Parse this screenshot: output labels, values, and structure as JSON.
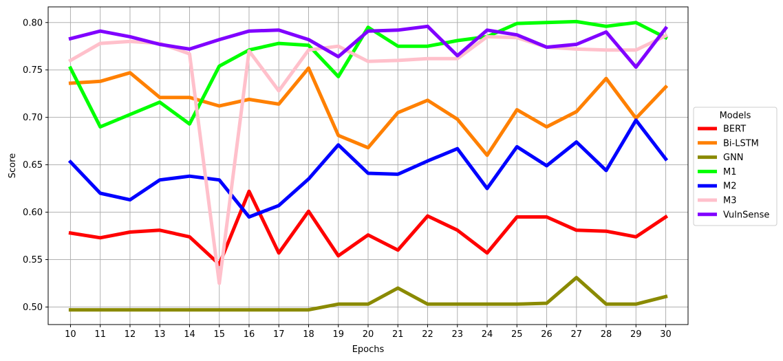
{
  "chart_data": {
    "type": "line",
    "title": "",
    "xlabel": "Epochs",
    "ylabel": "Score",
    "x": [
      10,
      11,
      12,
      13,
      14,
      15,
      16,
      17,
      18,
      19,
      20,
      21,
      22,
      23,
      24,
      25,
      26,
      27,
      28,
      29,
      30
    ],
    "x_tick_labels": [
      "10",
      "11",
      "12",
      "13",
      "14",
      "15",
      "16",
      "17",
      "18",
      "19",
      "20",
      "21",
      "22",
      "23",
      "24",
      "25",
      "26",
      "27",
      "28",
      "29",
      "30"
    ],
    "yticks": [
      0.5,
      0.55,
      0.6,
      0.65,
      0.7,
      0.75,
      0.8
    ],
    "y_tick_labels": [
      "0.50",
      "0.55",
      "0.60",
      "0.65",
      "0.70",
      "0.75",
      "0.80"
    ],
    "xlim": [
      9.25,
      30.75
    ],
    "ylim": [
      0.4815,
      0.8165
    ],
    "grid": true,
    "legend": {
      "title": "Models",
      "position": "right"
    },
    "series": [
      {
        "name": "BERT",
        "color": "#ff0000",
        "values": [
          0.578,
          0.573,
          0.579,
          0.581,
          0.574,
          0.545,
          0.622,
          0.557,
          0.601,
          0.554,
          0.576,
          0.56,
          0.596,
          0.581,
          0.557,
          0.595,
          0.595,
          0.581,
          0.58,
          0.574,
          0.595
        ]
      },
      {
        "name": "Bi-LSTM",
        "color": "#ff8000",
        "values": [
          0.736,
          0.738,
          0.747,
          0.721,
          0.721,
          0.712,
          0.719,
          0.714,
          0.752,
          0.681,
          0.668,
          0.705,
          0.718,
          0.698,
          0.66,
          0.708,
          0.69,
          0.706,
          0.741,
          0.699,
          0.732
        ]
      },
      {
        "name": "GNN",
        "color": "#8a8a00",
        "values": [
          0.497,
          0.497,
          0.497,
          0.497,
          0.497,
          0.497,
          0.497,
          0.497,
          0.497,
          0.503,
          0.503,
          0.52,
          0.503,
          0.503,
          0.503,
          0.503,
          0.504,
          0.531,
          0.503,
          0.503,
          0.511
        ]
      },
      {
        "name": "M1",
        "color": "#00ff00",
        "values": [
          0.752,
          0.69,
          0.703,
          0.716,
          0.693,
          0.754,
          0.771,
          0.778,
          0.776,
          0.743,
          0.795,
          0.775,
          0.775,
          0.781,
          0.785,
          0.799,
          0.8,
          0.801,
          0.796,
          0.8,
          0.784
        ]
      },
      {
        "name": "M2",
        "color": "#0000ff",
        "values": [
          0.653,
          0.62,
          0.613,
          0.634,
          0.638,
          0.634,
          0.595,
          0.607,
          0.635,
          0.671,
          0.641,
          0.64,
          0.654,
          0.667,
          0.625,
          0.669,
          0.649,
          0.674,
          0.644,
          0.697,
          0.656
        ]
      },
      {
        "name": "M3",
        "color": "#ffc0cb",
        "values": [
          0.76,
          0.778,
          0.78,
          0.778,
          0.767,
          0.525,
          0.77,
          0.728,
          0.771,
          0.775,
          0.759,
          0.76,
          0.762,
          0.762,
          0.785,
          0.784,
          0.774,
          0.772,
          0.771,
          0.771,
          0.786
        ]
      },
      {
        "name": "VulnSense",
        "color": "#8000ff",
        "values": [
          0.783,
          0.791,
          0.785,
          0.777,
          0.772,
          0.782,
          0.791,
          0.792,
          0.782,
          0.764,
          0.791,
          0.792,
          0.796,
          0.765,
          0.792,
          0.787,
          0.774,
          0.777,
          0.79,
          0.753,
          0.794
        ]
      }
    ]
  }
}
